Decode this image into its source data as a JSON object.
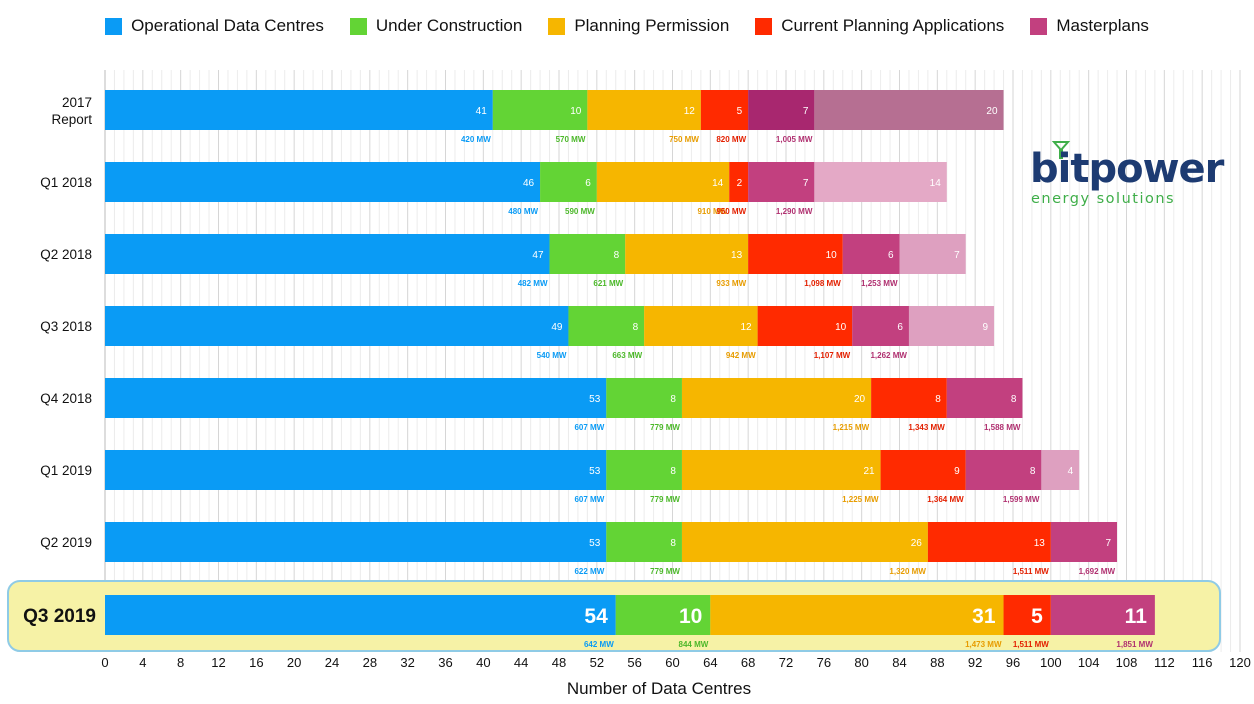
{
  "chart_data": {
    "type": "bar",
    "orientation": "horizontal",
    "stacked": true,
    "xlabel": "Number of Data Centres",
    "xlim": [
      0,
      120
    ],
    "x_ticks": [
      "0",
      "4",
      "8",
      "12",
      "16",
      "20",
      "24",
      "28",
      "32",
      "36",
      "40",
      "44",
      "48",
      "52",
      "56",
      "60",
      "64",
      "68",
      "72",
      "76",
      "80",
      "84",
      "88",
      "92",
      "96",
      "100",
      "104",
      "108",
      "112",
      "116",
      "120"
    ],
    "grid": "vertical",
    "legend_position": "top",
    "categories": [
      "2017 Report",
      "Q1 2018",
      "Q2 2018",
      "Q3 2018",
      "Q4 2018",
      "Q1 2019",
      "Q2 2019",
      "Q3 2019"
    ],
    "highlighted_category": "Q3 2019",
    "series": [
      {
        "name": "Operational Data Centres",
        "color": "#0a9bf5",
        "label_color": "#0a9bf5",
        "values": [
          41,
          46,
          47,
          49,
          53,
          53,
          53,
          54
        ],
        "mw_labels": [
          "420 MW",
          "480 MW",
          "482 MW",
          "540 MW",
          "607 MW",
          "607 MW",
          "622 MW",
          "642 MW"
        ]
      },
      {
        "name": "Under Construction",
        "color": "#63d435",
        "label_color": "#4cb82a",
        "values": [
          10,
          6,
          8,
          8,
          8,
          8,
          8,
          10
        ],
        "mw_labels": [
          "570 MW",
          "590 MW",
          "621 MW",
          "663 MW",
          "779 MW",
          "779 MW",
          "779 MW",
          "844 MW"
        ]
      },
      {
        "name": "Planning Permission",
        "color": "#f6b600",
        "label_color": "#e79c00",
        "values": [
          12,
          14,
          13,
          12,
          20,
          21,
          26,
          31
        ],
        "mw_labels": [
          "750 MW",
          "910 MW",
          "933 MW",
          "942 MW",
          "1,215 MW",
          "1,225 MW",
          "1,320 MW",
          "1,473 MW"
        ]
      },
      {
        "name": "Current Planning Applications",
        "color": "#ff2a00",
        "label_color": "#e32000",
        "values": [
          5,
          2,
          10,
          10,
          8,
          9,
          13,
          5
        ],
        "mw_labels": [
          "820 MW",
          "950 MW",
          "1,098 MW",
          "1,107 MW",
          "1,343 MW",
          "1,364 MW",
          "1,511 MW",
          "1,511 MW"
        ]
      },
      {
        "name": "Masterplans",
        "color": "#c2407f",
        "label_color": "#b03070",
        "values": [
          7,
          7,
          6,
          6,
          8,
          8,
          7,
          11
        ],
        "mw_labels": [
          "1,005 MW",
          "1,290 MW",
          "1,253 MW",
          "1,262 MW",
          "1,588 MW",
          "1,599 MW",
          "1,692 MW",
          "1,851 MW"
        ]
      },
      {
        "name": "",
        "color": "#c27da3",
        "label_color": "#c27da3",
        "values": [
          20,
          14,
          7,
          9,
          0,
          4,
          0,
          0
        ],
        "mw_labels": [
          "",
          "",
          "",
          "",
          "",
          "",
          "",
          ""
        ]
      }
    ],
    "segment_shades": [
      [
        "#0a9bf5",
        "#63d435",
        "#f6b600",
        "#ff2a00",
        "#a8276f",
        "#b66f92"
      ],
      [
        "#0a9bf5",
        "#63d435",
        "#f6b600",
        "#ff2a00",
        "#c2407f",
        "#e4a9c6"
      ],
      [
        "#0a9bf5",
        "#63d435",
        "#f6b600",
        "#ff2a00",
        "#c2407f",
        "#dea0c0"
      ],
      [
        "#0a9bf5",
        "#63d435",
        "#f6b600",
        "#ff2a00",
        "#c2407f",
        "#dea0c0"
      ],
      [
        "#0a9bf5",
        "#63d435",
        "#f6b600",
        "#ff2a00",
        "#c2407f",
        "#dea0c0"
      ],
      [
        "#0a9bf5",
        "#63d435",
        "#f6b600",
        "#ff2a00",
        "#c2407f",
        "#dea0c0"
      ],
      [
        "#0a9bf5",
        "#63d435",
        "#f6b600",
        "#ff2a00",
        "#c2407f",
        "#dea0c0"
      ],
      [
        "#0a9bf5",
        "#63d435",
        "#f6b600",
        "#ff2a00",
        "#c2407f",
        "#dea0c0"
      ]
    ],
    "highlight_color": "#f6f2a6",
    "highlight_border": "#8fcbe6"
  },
  "logo": {
    "name": "bitpower",
    "tagline": "energy solutions",
    "colors": {
      "primary": "#1d3b72",
      "accent": "#3fae49"
    }
  }
}
